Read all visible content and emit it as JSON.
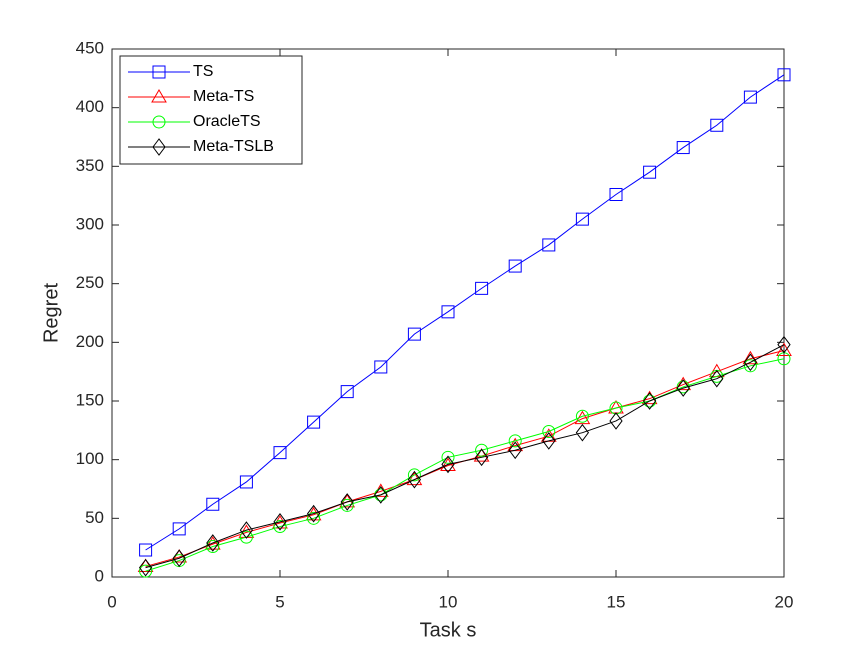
{
  "chart_data": {
    "type": "line",
    "xlabel": "Task s",
    "ylabel": "Regret",
    "x": [
      1,
      2,
      3,
      4,
      5,
      6,
      7,
      8,
      9,
      10,
      11,
      12,
      13,
      14,
      15,
      16,
      17,
      18,
      19,
      20
    ],
    "xlim": [
      0,
      20
    ],
    "xticks": [
      0,
      5,
      10,
      15,
      20
    ],
    "ylim": [
      0,
      450
    ],
    "yticks": [
      0,
      50,
      100,
      150,
      200,
      250,
      300,
      350,
      400,
      450
    ],
    "legend": "upper-left",
    "series": [
      {
        "name": "TS",
        "color": "#0000ff",
        "marker": "square",
        "values": [
          23,
          41,
          62,
          81,
          106,
          132,
          158,
          179,
          207,
          226,
          246,
          265,
          283,
          305,
          326,
          345,
          366,
          385,
          409,
          428
        ]
      },
      {
        "name": "Meta-TS",
        "color": "#ff0000",
        "marker": "triangle",
        "values": [
          9,
          17,
          28,
          38,
          46,
          53,
          64,
          73,
          83,
          95,
          103,
          112,
          120,
          135,
          144,
          152,
          164,
          175,
          186,
          193
        ]
      },
      {
        "name": "OracleTS",
        "color": "#00ff00",
        "marker": "circle",
        "values": [
          5,
          14,
          26,
          34,
          43,
          50,
          61,
          70,
          87,
          102,
          108,
          116,
          124,
          137,
          144,
          150,
          162,
          171,
          180,
          186
        ]
      },
      {
        "name": "Meta-TSLB",
        "color": "#000000",
        "marker": "diamond",
        "values": [
          8,
          16,
          29,
          40,
          47,
          54,
          64,
          70,
          83,
          96,
          102,
          108,
          116,
          123,
          133,
          150,
          161,
          169,
          183,
          198
        ]
      }
    ]
  }
}
